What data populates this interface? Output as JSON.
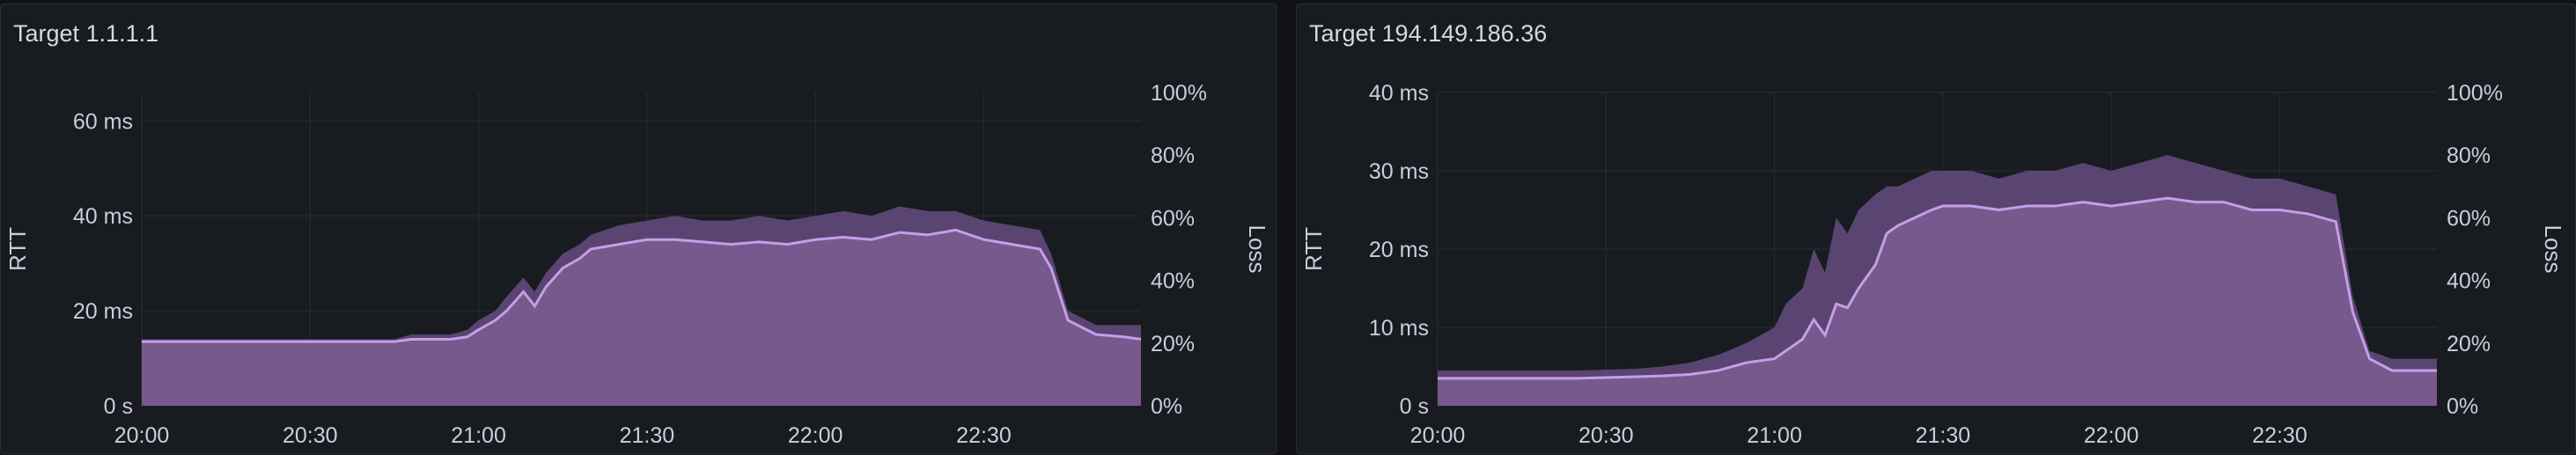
{
  "chart_data": [
    {
      "type": "area",
      "title": "Target 1.1.1.1",
      "ylabel": "RTT",
      "y2label": "Loss",
      "ylim": [
        0,
        66
      ],
      "yticks": [
        "0 s",
        "20 ms",
        "40 ms",
        "60 ms"
      ],
      "ytick_values": [
        0,
        20,
        40,
        60
      ],
      "y2lim": [
        0,
        100
      ],
      "y2ticks": [
        "0%",
        "20%",
        "40%",
        "60%",
        "80%",
        "100%"
      ],
      "xlim_min": [
        0,
        178
      ],
      "xticks": [
        "20:00",
        "20:30",
        "21:00",
        "21:30",
        "22:00",
        "22:30"
      ],
      "xtick_values": [
        0,
        30,
        60,
        90,
        120,
        150
      ],
      "grid": true,
      "series": [
        {
          "x": [
            0,
            5,
            10,
            15,
            20,
            25,
            30,
            40,
            45,
            48,
            50,
            55,
            58,
            60,
            63,
            65,
            68,
            70,
            72,
            75,
            78,
            80,
            85,
            90,
            95,
            100,
            105,
            110,
            115,
            120,
            125,
            130,
            135,
            140,
            145,
            150,
            155,
            160,
            162,
            165,
            170,
            175,
            178
          ],
          "values": [
            13.5,
            13.5,
            13.5,
            13.5,
            13.5,
            13.5,
            13.5,
            13.5,
            13.5,
            14,
            14,
            14,
            14.5,
            16,
            18,
            20,
            24,
            21,
            25,
            29,
            31,
            33,
            34,
            35,
            35,
            34.5,
            34,
            34.5,
            34,
            35,
            35.5,
            35,
            36.5,
            36,
            37,
            35,
            34,
            33,
            29,
            18,
            15,
            14.5,
            14
          ]
        },
        {
          "x": [
            0,
            5,
            10,
            15,
            20,
            25,
            30,
            40,
            45,
            48,
            50,
            55,
            58,
            60,
            63,
            65,
            68,
            70,
            72,
            75,
            78,
            80,
            85,
            90,
            95,
            100,
            105,
            110,
            115,
            120,
            125,
            130,
            135,
            140,
            145,
            150,
            155,
            160,
            162,
            165,
            170,
            175,
            178
          ],
          "values": [
            14,
            14,
            14,
            14,
            14,
            14,
            14,
            14,
            14,
            15,
            15,
            15,
            16,
            18,
            20,
            23,
            27,
            24,
            28,
            32,
            34,
            36,
            38,
            39,
            40,
            39,
            39,
            40,
            39,
            40,
            41,
            40,
            42,
            41,
            41,
            39,
            38,
            37,
            32,
            20,
            17,
            17,
            17
          ]
        }
      ]
    },
    {
      "type": "area",
      "title": "Target 194.149.186.36",
      "ylabel": "RTT",
      "y2label": "Loss",
      "ylim": [
        0,
        40
      ],
      "yticks": [
        "0 s",
        "10 ms",
        "20 ms",
        "30 ms",
        "40 ms"
      ],
      "ytick_values": [
        0,
        10,
        20,
        30,
        40
      ],
      "y2lim": [
        0,
        100
      ],
      "y2ticks": [
        "0%",
        "20%",
        "40%",
        "60%",
        "80%",
        "100%"
      ],
      "xlim_min": [
        0,
        178
      ],
      "xticks": [
        "20:00",
        "20:30",
        "21:00",
        "21:30",
        "22:00",
        "22:30"
      ],
      "xtick_values": [
        0,
        30,
        60,
        90,
        120,
        150
      ],
      "grid": true,
      "series": [
        {
          "x": [
            0,
            5,
            10,
            15,
            20,
            25,
            30,
            35,
            40,
            45,
            50,
            55,
            60,
            62,
            65,
            67,
            69,
            71,
            73,
            75,
            78,
            80,
            82,
            85,
            88,
            90,
            95,
            100,
            105,
            110,
            115,
            120,
            125,
            130,
            135,
            140,
            145,
            150,
            155,
            160,
            163,
            166,
            170,
            175,
            178
          ],
          "values": [
            3.5,
            3.5,
            3.5,
            3.5,
            3.5,
            3.5,
            3.6,
            3.7,
            3.8,
            4,
            4.5,
            5.5,
            6,
            7,
            8.5,
            11,
            9,
            13,
            12.5,
            15,
            18,
            22,
            23,
            24,
            25,
            25.5,
            25.5,
            25,
            25.5,
            25.5,
            26,
            25.5,
            26,
            26.5,
            26,
            26,
            25,
            25,
            24.5,
            23.5,
            12,
            6,
            4.5,
            4.5,
            4.5
          ]
        },
        {
          "x": [
            0,
            5,
            10,
            15,
            20,
            25,
            30,
            35,
            40,
            45,
            50,
            55,
            60,
            62,
            65,
            67,
            69,
            71,
            73,
            75,
            78,
            80,
            82,
            85,
            88,
            90,
            95,
            100,
            105,
            110,
            115,
            120,
            125,
            130,
            135,
            140,
            145,
            150,
            155,
            160,
            163,
            166,
            170,
            175,
            178
          ],
          "values": [
            4.5,
            4.5,
            4.5,
            4.5,
            4.5,
            4.5,
            4.6,
            4.7,
            5,
            5.5,
            6.5,
            8,
            10,
            13,
            15,
            20,
            17,
            24,
            22,
            25,
            27,
            28,
            28,
            29,
            30,
            30,
            30,
            29,
            30,
            30,
            31,
            30,
            31,
            32,
            31,
            30,
            29,
            29,
            28,
            27,
            14,
            7,
            6,
            6,
            6
          ]
        }
      ]
    }
  ]
}
